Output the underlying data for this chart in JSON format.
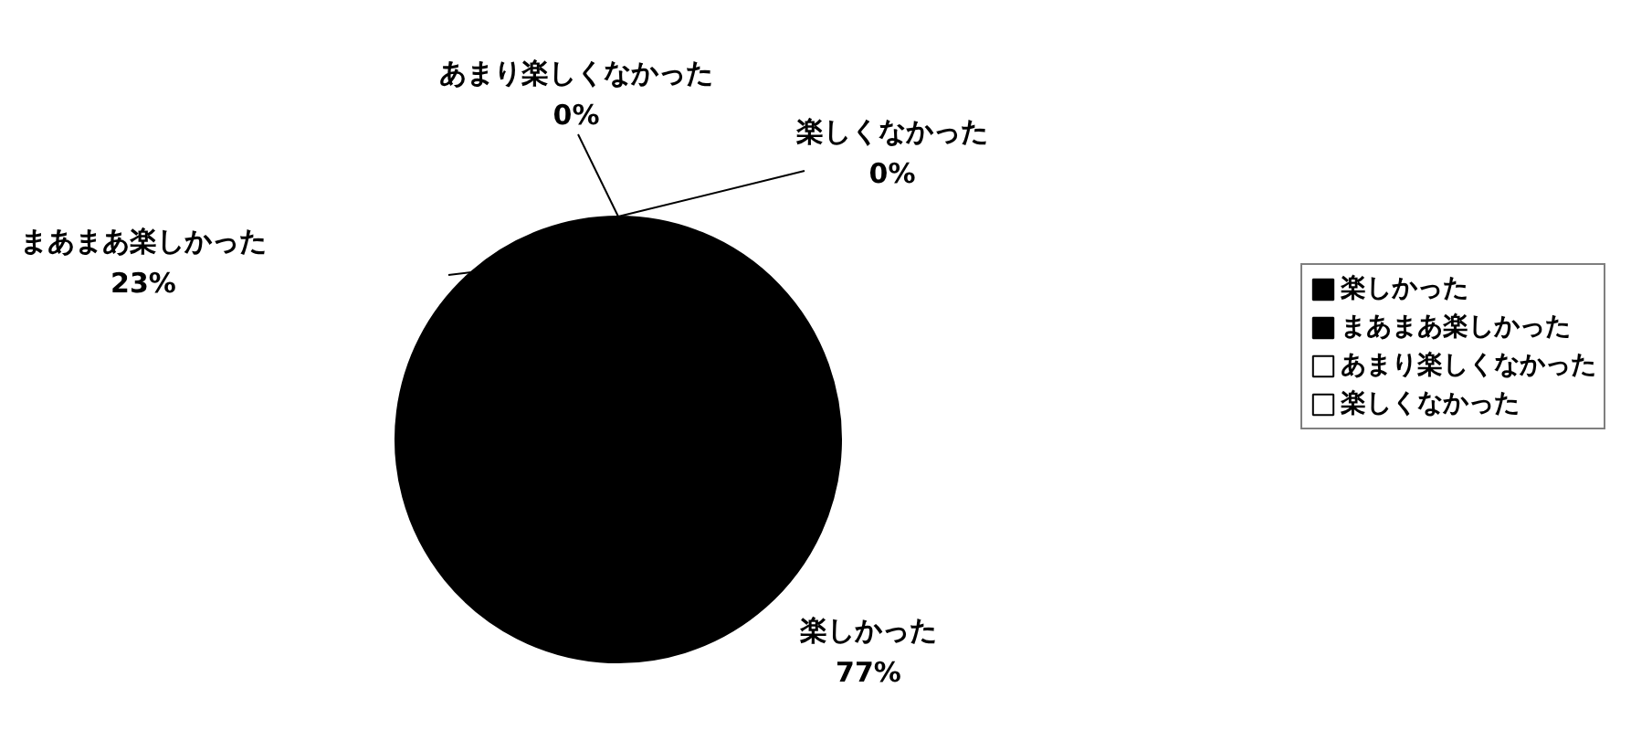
{
  "chart_data": {
    "type": "pie",
    "categories": [
      "楽しかった",
      "まあまあ楽しかった",
      "あまり楽しくなかった",
      "楽しくなかった"
    ],
    "values": [
      77,
      23,
      0,
      0
    ],
    "colors": [
      "#000000",
      "#000000",
      "#ffffff",
      "#ffffff"
    ],
    "value_labels": [
      "77%",
      "23%",
      "0%",
      "0%"
    ],
    "legend": "right"
  }
}
